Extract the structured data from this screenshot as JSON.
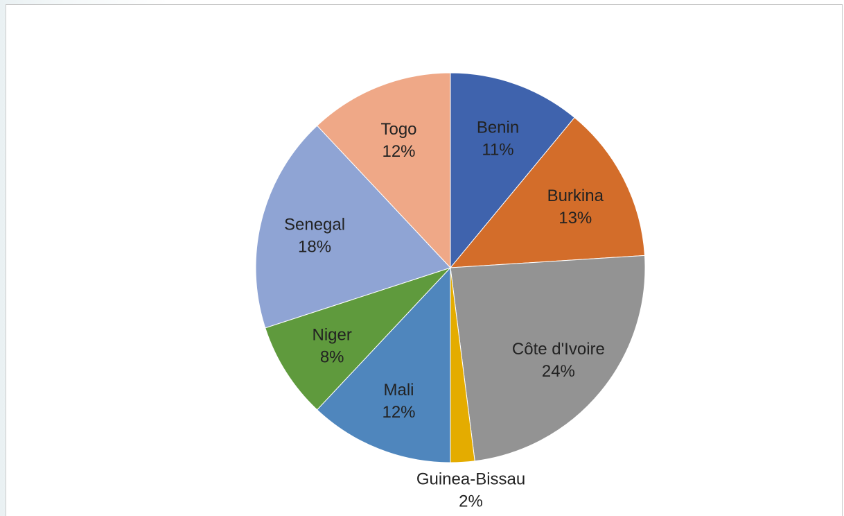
{
  "chart_data": {
    "type": "pie",
    "title": "",
    "slices": [
      {
        "label": "Benin",
        "value": 11,
        "pct_label": "11%",
        "color": "#3f63ad"
      },
      {
        "label": "Burkina",
        "value": 13,
        "pct_label": "13%",
        "color": "#d36d2a"
      },
      {
        "label": "Côte d'Ivoire",
        "value": 24,
        "pct_label": "24%",
        "color": "#939393"
      },
      {
        "label": "Guinea-Bissau",
        "value": 2,
        "pct_label": "2%",
        "color": "#e4ac00"
      },
      {
        "label": "Mali",
        "value": 12,
        "pct_label": "12%",
        "color": "#4f86bd"
      },
      {
        "label": "Niger",
        "value": 8,
        "pct_label": "8%",
        "color": "#5f9a3d"
      },
      {
        "label": "Senegal",
        "value": 18,
        "pct_label": "18%",
        "color": "#8fa4d4"
      },
      {
        "label": "Togo",
        "value": 12,
        "pct_label": "12%",
        "color": "#efa887"
      }
    ]
  }
}
